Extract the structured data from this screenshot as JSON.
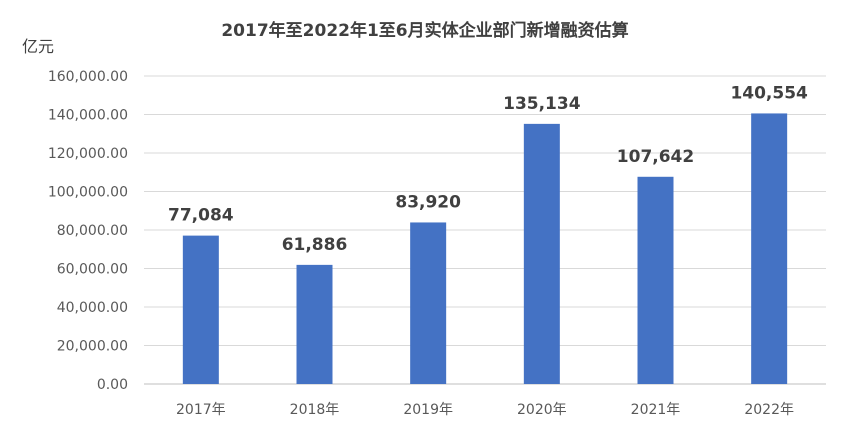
{
  "chart_data": {
    "type": "bar",
    "title": "2017年至2022年1至6月实体企业部门新增融资估算",
    "unit_label": "亿元",
    "categories": [
      "2017年",
      "2018年",
      "2019年",
      "2020年",
      "2021年",
      "2022年"
    ],
    "values": [
      77084,
      61886,
      83920,
      135134,
      107642,
      140554
    ],
    "data_labels": [
      "77,084",
      "61,886",
      "83,920",
      "135,134",
      "107,642",
      "140,554"
    ],
    "yticks": [
      "0.00",
      "20,000.00",
      "40,000.00",
      "60,000.00",
      "80,000.00",
      "100,000.00",
      "120,000.00",
      "140,000.00",
      "160,000.00"
    ],
    "ylim": [
      0,
      160000
    ],
    "grid": true,
    "colors": {
      "bar": "#4472C4"
    }
  }
}
